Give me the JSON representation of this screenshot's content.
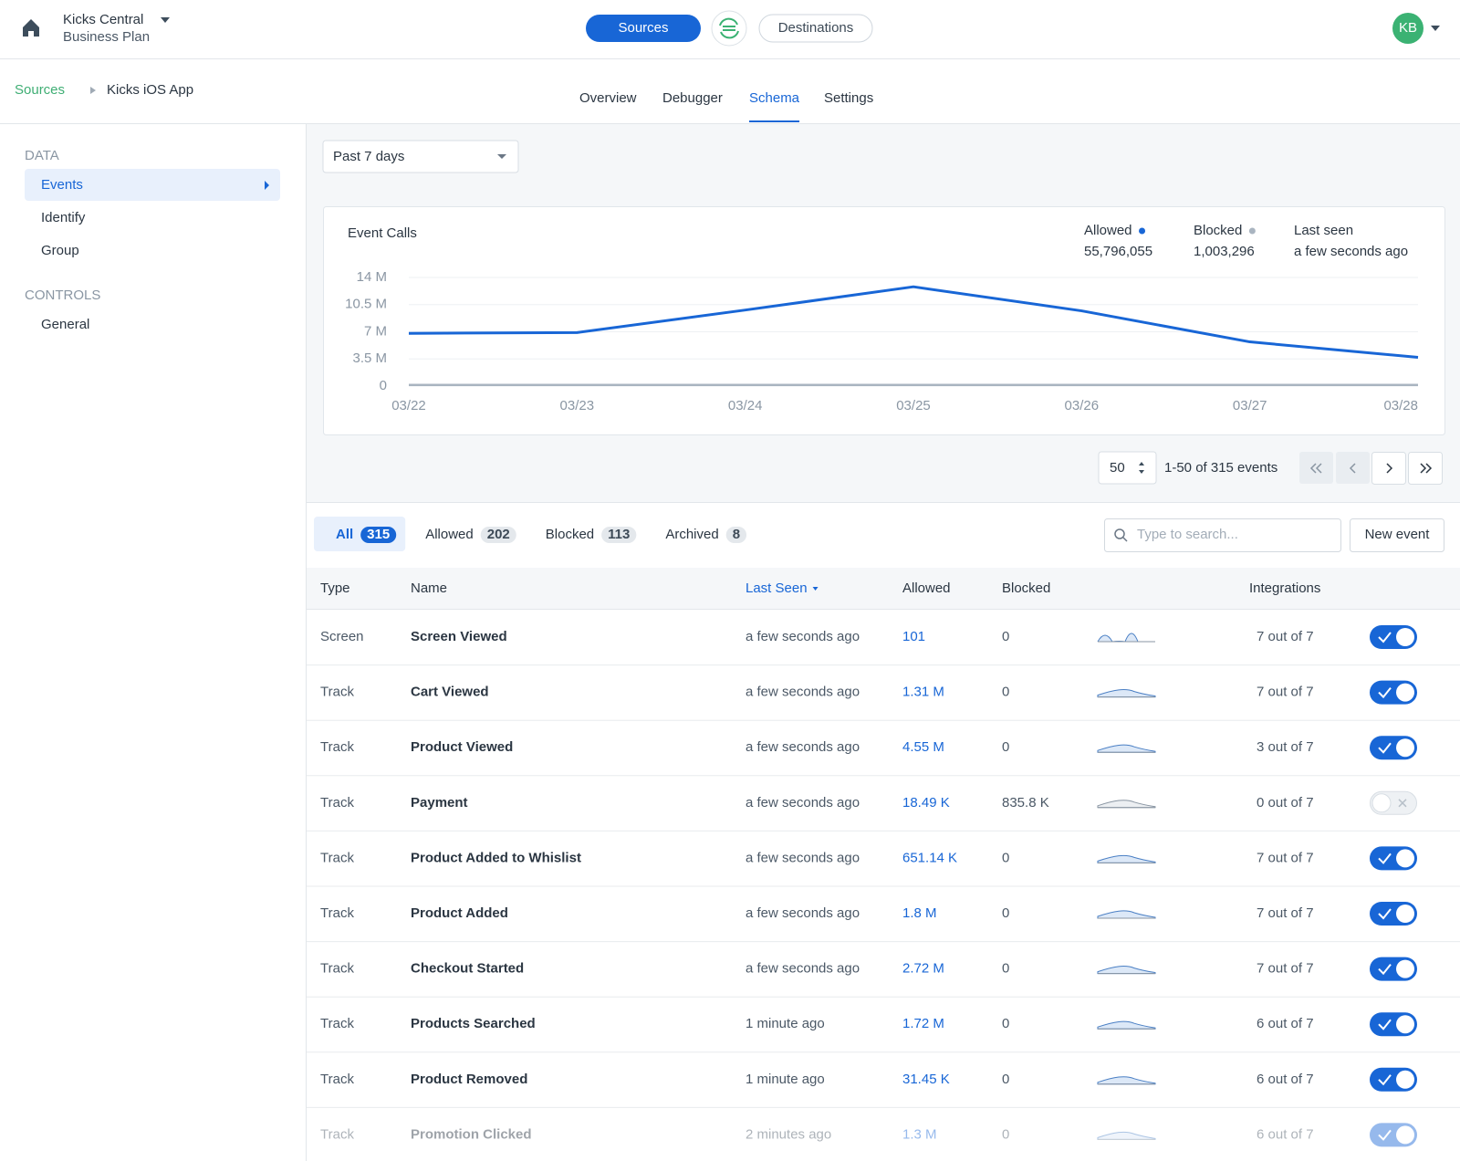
{
  "header": {
    "org": "Kicks Central",
    "plan": "Business Plan",
    "nav": [
      {
        "label": "Sources",
        "active": true
      },
      {
        "label": "Destinations"
      }
    ],
    "avatar": "KB"
  },
  "breadcrumb": [
    "Sources",
    "Kicks iOS App"
  ],
  "tabs": [
    {
      "label": "Overview"
    },
    {
      "label": "Debugger"
    },
    {
      "label": "Schema",
      "active": true
    },
    {
      "label": "Settings"
    }
  ],
  "sidebar": [
    {
      "title": "DATA",
      "items": [
        {
          "label": "Events",
          "active": true
        },
        {
          "label": "Identify"
        },
        {
          "label": "Group"
        }
      ]
    },
    {
      "title": "CONTROLS",
      "items": [
        {
          "label": "General"
        }
      ]
    }
  ],
  "date_range": "Past 7 days",
  "chart_data": {
    "type": "line",
    "title": "Event Calls",
    "categories": [
      "03/22",
      "03/23",
      "03/24",
      "03/25",
      "03/26",
      "03/27",
      "03/28"
    ],
    "series": [
      {
        "name": "Allowed",
        "color": "#1866d6",
        "total": "55,796,055",
        "values": [
          6.8,
          6.9,
          9.8,
          12.8,
          9.7,
          5.7,
          3.7
        ]
      },
      {
        "name": "Blocked",
        "color": "#a9b4c0",
        "total": "1,003,296",
        "values": [
          0.15,
          0.15,
          0.15,
          0.15,
          0.15,
          0.15,
          0.15
        ]
      }
    ],
    "last_seen": {
      "label": "Last seen",
      "value": "a few seconds ago"
    },
    "ylim": [
      0,
      14
    ],
    "yticks": [
      0,
      {
        "value": 3.5,
        "label": "3.5 M"
      },
      {
        "value": 7,
        "label": "7 M"
      },
      {
        "value": 10.5,
        "label": "10.5 M"
      },
      {
        "value": 14,
        "label": "14 M"
      }
    ],
    "grid": true
  },
  "pagination": {
    "page_size": 50,
    "range": "1-50 of 315 events"
  },
  "filters": [
    {
      "label": "All",
      "count": 315,
      "active": true
    },
    {
      "label": "Allowed",
      "count": 202
    },
    {
      "label": "Blocked",
      "count": 113
    },
    {
      "label": "Archived",
      "count": 8
    }
  ],
  "search_placeholder": "Type to search...",
  "new_event": "New event",
  "table": {
    "columns": [
      "Type",
      "Name",
      "Last Seen",
      "Allowed",
      "Blocked",
      "Integrations"
    ],
    "rows": [
      {
        "type": "Screen",
        "name": "Screen Viewed",
        "last_seen": "a few seconds ago",
        "allowed": "101",
        "blocked": "0",
        "integrations": "7 out of 7",
        "enabled": true
      },
      {
        "type": "Track",
        "name": "Cart Viewed",
        "last_seen": "a few seconds ago",
        "allowed": "1.31 M",
        "blocked": "0",
        "integrations": "7 out of 7",
        "enabled": true
      },
      {
        "type": "Track",
        "name": "Product Viewed",
        "last_seen": "a few seconds ago",
        "allowed": "4.55 M",
        "blocked": "0",
        "integrations": "3 out of 7",
        "enabled": true
      },
      {
        "type": "Track",
        "name": "Payment",
        "last_seen": "a few seconds ago",
        "allowed": "18.49 K",
        "blocked": "835.8 K",
        "integrations": "0 out of 7",
        "enabled": false
      },
      {
        "type": "Track",
        "name": "Product Added to Whislist",
        "last_seen": "a few seconds ago",
        "allowed": "651.14 K",
        "blocked": "0",
        "integrations": "7 out of 7",
        "enabled": true
      },
      {
        "type": "Track",
        "name": "Product Added",
        "last_seen": "a few seconds ago",
        "allowed": "1.8 M",
        "blocked": "0",
        "integrations": "7 out of 7",
        "enabled": true
      },
      {
        "type": "Track",
        "name": "Checkout Started",
        "last_seen": "a few seconds ago",
        "allowed": "2.72 M",
        "blocked": "0",
        "integrations": "7 out of 7",
        "enabled": true
      },
      {
        "type": "Track",
        "name": "Products Searched",
        "last_seen": "1 minute ago",
        "allowed": "1.72 M",
        "blocked": "0",
        "integrations": "6 out of 7",
        "enabled": true
      },
      {
        "type": "Track",
        "name": "Product Removed",
        "last_seen": "1 minute ago",
        "allowed": "31.45 K",
        "blocked": "0",
        "integrations": "6 out of 7",
        "enabled": true
      },
      {
        "type": "Track",
        "name": "Promotion Clicked",
        "last_seen": "2 minutes ago",
        "allowed": "1.3 M",
        "blocked": "0",
        "integrations": "6 out of 7",
        "enabled": true
      }
    ]
  }
}
